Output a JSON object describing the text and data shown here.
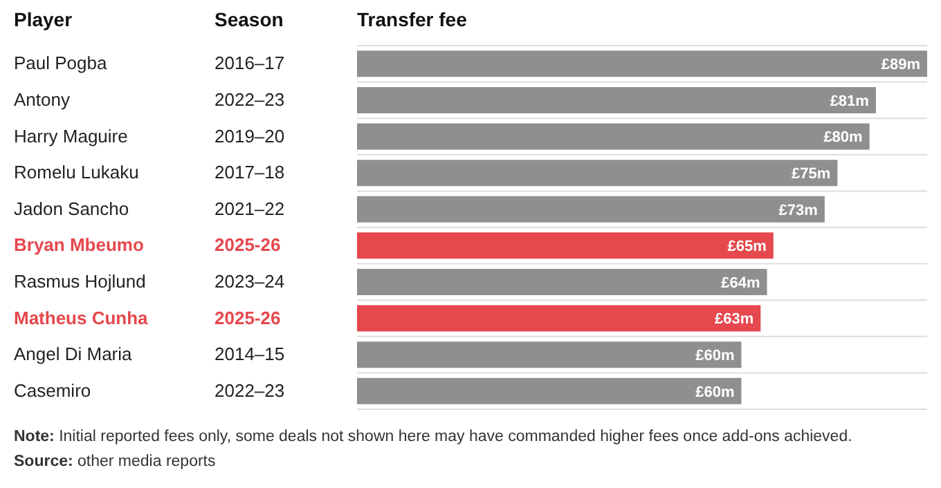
{
  "chart_data": {
    "type": "bar",
    "orientation": "horizontal",
    "ylabel": "Player",
    "y2label": "Season",
    "xlabel": "Transfer fee",
    "categories": [
      "Paul Pogba",
      "Antony",
      "Harry Maguire",
      "Romelu Lukaku",
      "Jadon Sancho",
      "Bryan Mbeumo",
      "Rasmus Hojlund",
      "Matheus Cunha",
      "Angel Di Maria",
      "Casemiro"
    ],
    "y2_categories": [
      "2016–17",
      "2022–23",
      "2019–20",
      "2017–18",
      "2021–22",
      "2025-26",
      "2023–24",
      "2025-26",
      "2014–15",
      "2022–23"
    ],
    "values": [
      89,
      81,
      80,
      75,
      73,
      65,
      64,
      63,
      60,
      60
    ],
    "value_labels": [
      "£89m",
      "£81m",
      "£80m",
      "£75m",
      "£73m",
      "£65m",
      "£64m",
      "£63m",
      "£60m",
      "£60m"
    ],
    "colors": [
      "#8f8f8f",
      "#8f8f8f",
      "#8f8f8f",
      "#8f8f8f",
      "#8f8f8f",
      "#e5484d",
      "#8f8f8f",
      "#e5484d",
      "#8f8f8f",
      "#8f8f8f"
    ],
    "grid": "y",
    "annotations": [
      "Note: Initial reported fees only, some deals not shown here may have commanded higher fees once add-ons achieved.",
      "Source: other media reports"
    ]
  }
}
